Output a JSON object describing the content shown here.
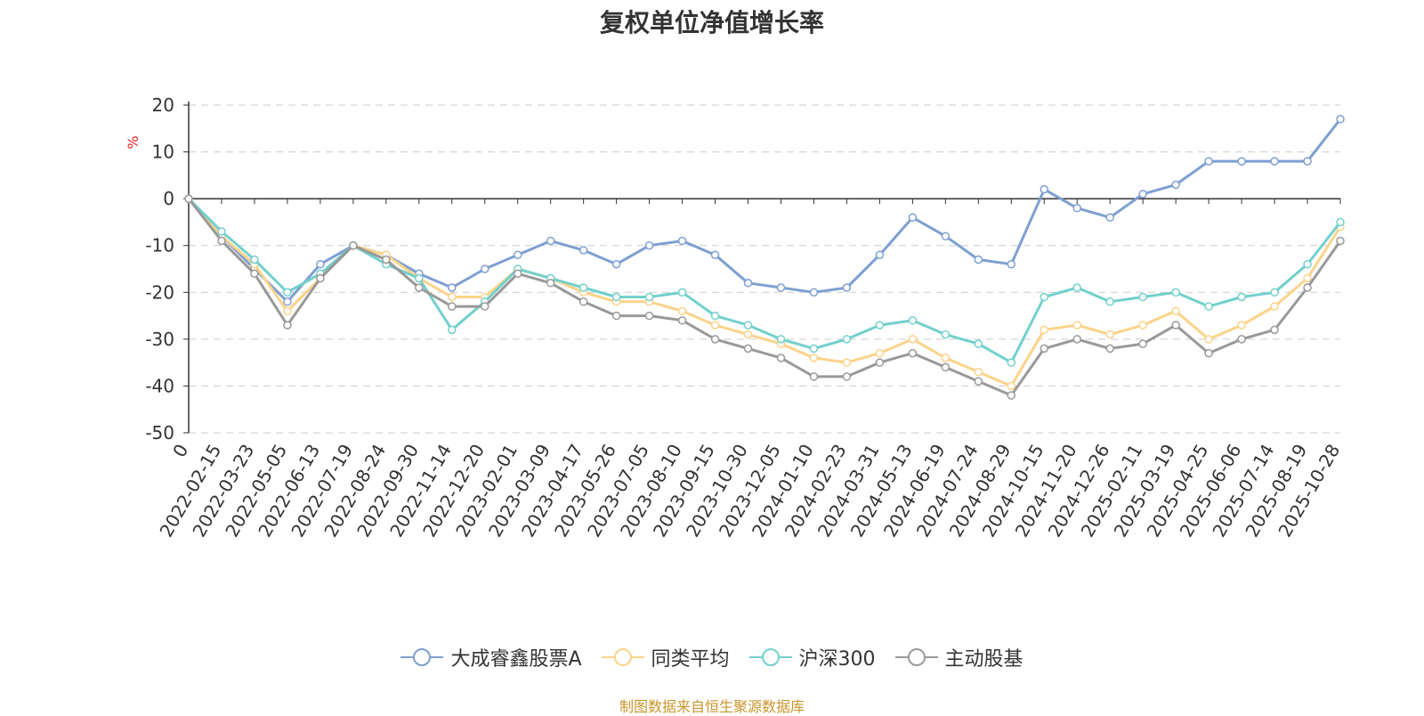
{
  "chart_data": {
    "type": "line",
    "title": "复权单位净值增长率",
    "ylabel": "%",
    "ylim": [
      -50,
      20
    ],
    "yticks": [
      20,
      10,
      0,
      -10,
      -20,
      -30,
      -40,
      -50
    ],
    "grid": true,
    "legend_position": "bottom",
    "source_note": "制图数据来自恒生聚源数据库",
    "x_tick_labels": [
      "0",
      "2022-02-15",
      "2022-03-23",
      "2022-05-05",
      "2022-06-13",
      "2022-07-19",
      "2022-08-24",
      "2022-09-30",
      "2022-11-14",
      "2022-12-20",
      "2023-02-01",
      "2023-03-09",
      "2023-04-17",
      "2023-05-26",
      "2023-07-05",
      "2023-08-10",
      "2023-09-15",
      "2023-10-30",
      "2023-12-05",
      "2024-01-10",
      "2024-02-23",
      "2024-03-31",
      "2024-05-13",
      "2024-06-19",
      "2024-07-24",
      "2024-08-29",
      "2024-10-15",
      "2024-11-20",
      "2024-12-26",
      "2025-02-11",
      "2025-03-19",
      "2025-04-25",
      "2025-06-06",
      "2025-07-14",
      "2025-08-19",
      "2025-10-28"
    ],
    "x": [
      "0",
      "2022-02-15",
      "2022-03-23",
      "2022-05-05",
      "2022-06-13",
      "2022-07-19",
      "2022-08-24",
      "2022-09-30",
      "2022-11-14",
      "2022-12-20",
      "2023-02-01",
      "2023-03-09",
      "2023-04-17",
      "2023-05-26",
      "2023-07-05",
      "2023-08-10",
      "2023-09-15",
      "2023-10-30",
      "2023-12-05",
      "2024-01-10",
      "2024-02-23",
      "2024-03-31",
      "2024-05-13",
      "2024-06-19",
      "2024-07-24",
      "2024-08-29",
      "2024-10-15",
      "2024-11-20",
      "2024-12-26",
      "2025-02-11",
      "2025-03-19",
      "2025-04-25",
      "2025-06-06",
      "2025-07-14",
      "2025-08-19",
      "2025-10-28"
    ],
    "series": [
      {
        "name": "大成睿鑫股票A",
        "color": "#7e9fd1",
        "values": [
          0,
          -8,
          -15,
          -22,
          -14,
          -10,
          -12,
          -16,
          -19,
          -15,
          -12,
          -9,
          -11,
          -14,
          -10,
          -9,
          -12,
          -18,
          -19,
          -20,
          -19,
          -12,
          -4,
          -8,
          -13,
          -14,
          2,
          -2,
          -4,
          1,
          3,
          8,
          8,
          8,
          8,
          17
        ]
      },
      {
        "name": "同类平均",
        "color": "#fbd38a",
        "values": [
          0,
          -8,
          -14,
          -24,
          -17,
          -10,
          -12,
          -17,
          -21,
          -21,
          -15,
          -17,
          -20,
          -22,
          -22,
          -24,
          -27,
          -29,
          -31,
          -34,
          -35,
          -33,
          -30,
          -34,
          -37,
          -40,
          -28,
          -27,
          -29,
          -27,
          -24,
          -30,
          -27,
          -23,
          -17,
          -6
        ]
      },
      {
        "name": "沪深300",
        "color": "#72d0cc",
        "values": [
          0,
          -7,
          -13,
          -20,
          -16,
          -10,
          -14,
          -17,
          -28,
          -22,
          -15,
          -17,
          -19,
          -21,
          -21,
          -20,
          -25,
          -27,
          -30,
          -32,
          -30,
          -27,
          -26,
          -29,
          -31,
          -35,
          -21,
          -19,
          -22,
          -21,
          -20,
          -23,
          -21,
          -20,
          -14,
          -5
        ]
      },
      {
        "name": "主动股基",
        "color": "#999999",
        "values": [
          0,
          -9,
          -16,
          -27,
          -17,
          -10,
          -13,
          -19,
          -23,
          -23,
          -16,
          -18,
          -22,
          -25,
          -25,
          -26,
          -30,
          -32,
          -34,
          -38,
          -38,
          -35,
          -33,
          -36,
          -39,
          -42,
          -32,
          -30,
          -32,
          -31,
          -27,
          -33,
          -30,
          -28,
          -19,
          -9
        ]
      }
    ]
  }
}
